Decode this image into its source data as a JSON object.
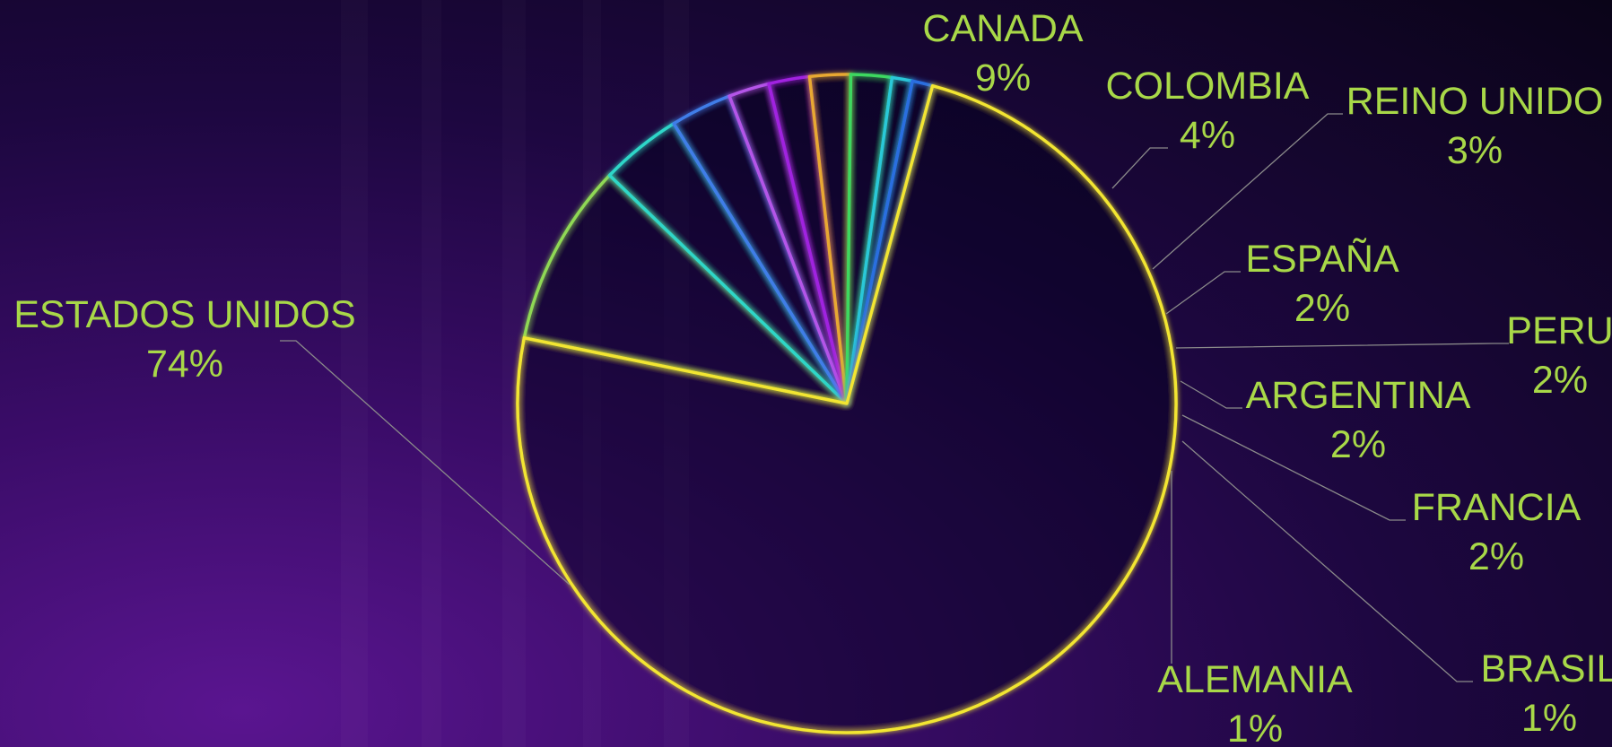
{
  "chart_data": {
    "type": "pie",
    "title": "",
    "slices": [
      {
        "label": "CANADA",
        "percent_label": "9%",
        "value": 9,
        "color": "#8fd855"
      },
      {
        "label": "COLOMBIA",
        "percent_label": "4%",
        "value": 4,
        "color": "#2fd6c8"
      },
      {
        "label": "REINO UNIDO",
        "percent_label": "3%",
        "value": 3,
        "color": "#3f7de8"
      },
      {
        "label": "ESPAÑA",
        "percent_label": "2%",
        "value": 2,
        "color": "#b455e8"
      },
      {
        "label": "PERU",
        "percent_label": "2%",
        "value": 2,
        "color": "#a020e0"
      },
      {
        "label": "ARGENTINA",
        "percent_label": "2%",
        "value": 2,
        "color": "#e8a830"
      },
      {
        "label": "FRANCIA",
        "percent_label": "2%",
        "value": 2,
        "color": "#3ed860"
      },
      {
        "label": "BRASIL",
        "percent_label": "1%",
        "value": 1,
        "color": "#29c8d8"
      },
      {
        "label": "ALEMANIA",
        "percent_label": "1%",
        "value": 1,
        "color": "#2a6ee0"
      },
      {
        "label": "ESTADOS UNIDOS",
        "percent_label": "74%",
        "value": 74,
        "color": "#f2e530"
      }
    ],
    "start_angle_deg": -78.5,
    "direction": "clockwise",
    "legend": "none",
    "data_labels": "outside with leader lines"
  }
}
